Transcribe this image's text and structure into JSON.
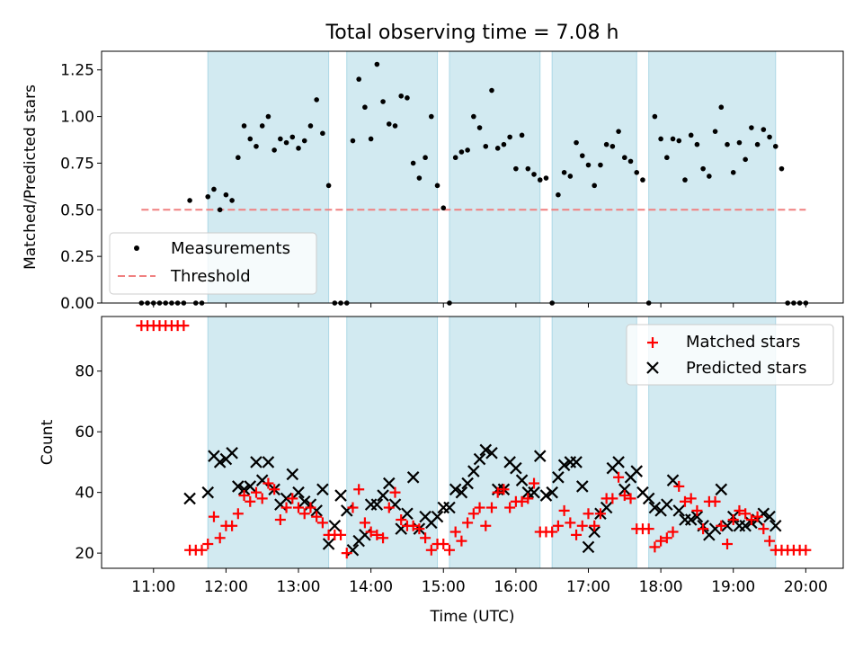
{
  "chart_data": [
    {
      "type": "scatter",
      "title": "Total observing time = 7.08 h",
      "ylabel": "Matched/Predicted stars",
      "ylim": [
        0,
        1.35
      ],
      "yticks": [
        "0.00",
        "0.25",
        "0.50",
        "0.75",
        "1.00",
        "1.25"
      ],
      "threshold": 0.5,
      "legend": {
        "placement": "lower-left",
        "entries": [
          "Measurements",
          "Threshold"
        ]
      },
      "series": [
        {
          "name": "Measurements",
          "x": [
            "10:50",
            "10:55",
            "11:00",
            "11:05",
            "11:10",
            "11:15",
            "11:20",
            "11:25",
            "11:30",
            "11:35",
            "11:40",
            "11:45",
            "11:50",
            "11:55",
            "12:00",
            "12:05",
            "12:10",
            "12:15",
            "12:20",
            "12:25",
            "12:30",
            "12:35",
            "12:40",
            "12:45",
            "12:50",
            "12:55",
            "13:00",
            "13:05",
            "13:10",
            "13:15",
            "13:20",
            "13:25",
            "13:30",
            "13:35",
            "13:40",
            "13:45",
            "13:50",
            "13:55",
            "14:00",
            "14:05",
            "14:10",
            "14:15",
            "14:20",
            "14:25",
            "14:30",
            "14:35",
            "14:40",
            "14:45",
            "14:50",
            "14:55",
            "15:00",
            "15:05",
            "15:10",
            "15:15",
            "15:20",
            "15:25",
            "15:30",
            "15:35",
            "15:40",
            "15:45",
            "15:50",
            "15:55",
            "16:00",
            "16:05",
            "16:10",
            "16:15",
            "16:20",
            "16:25",
            "16:30",
            "16:35",
            "16:40",
            "16:45",
            "16:50",
            "16:55",
            "17:00",
            "17:05",
            "17:10",
            "17:15",
            "17:20",
            "17:25",
            "17:30",
            "17:35",
            "17:40",
            "17:45",
            "17:50",
            "17:55",
            "18:00",
            "18:05",
            "18:10",
            "18:15",
            "18:20",
            "18:25",
            "18:30",
            "18:35",
            "18:40",
            "18:45",
            "18:50",
            "18:55",
            "19:00",
            "19:05",
            "19:10",
            "19:15",
            "19:20",
            "19:25",
            "19:30",
            "19:35",
            "19:40",
            "19:45",
            "19:50",
            "19:55",
            "20:00"
          ],
          "values": [
            0,
            0,
            0,
            0,
            0,
            0,
            0,
            0,
            0.55,
            0,
            0,
            0.57,
            0.61,
            0.5,
            0.58,
            0.55,
            0.78,
            0.95,
            0.88,
            0.84,
            0.95,
            1.0,
            0.82,
            0.88,
            0.86,
            0.89,
            0.83,
            0.87,
            0.95,
            1.09,
            0.91,
            0.63,
            0,
            0,
            0,
            0.87,
            1.2,
            1.05,
            0.88,
            1.28,
            1.08,
            0.96,
            0.95,
            1.11,
            1.1,
            0.75,
            0.67,
            0.78,
            1.0,
            0.63,
            0.51,
            0,
            0.78,
            0.81,
            0.82,
            1.0,
            0.94,
            0.84,
            1.14,
            0.83,
            0.85,
            0.89,
            0.72,
            0.9,
            0.72,
            0.69,
            0.66,
            0.67,
            0,
            0.58,
            0.7,
            0.68,
            0.86,
            0.79,
            0.74,
            0.63,
            0.74,
            0.85,
            0.84,
            0.92,
            0.78,
            0.76,
            0.7,
            0.66,
            0,
            1.0,
            0.88,
            0.78,
            0.88,
            0.87,
            0.66,
            0.9,
            0.85,
            0.72,
            0.68,
            0.92,
            1.05,
            0.85,
            0.7,
            0.86,
            0.77,
            0.94,
            0.85,
            0.93,
            0.89,
            0.84,
            0.72,
            0,
            0,
            0,
            0
          ]
        }
      ]
    },
    {
      "type": "scatter",
      "xlabel": "Time (UTC)",
      "ylabel": "Count",
      "ylim": [
        15,
        98
      ],
      "yticks": [
        "20",
        "40",
        "60",
        "80"
      ],
      "xticks": [
        "11:00",
        "12:00",
        "13:00",
        "14:00",
        "15:00",
        "16:00",
        "17:00",
        "18:00",
        "19:00",
        "20:00"
      ],
      "legend": {
        "placement": "top-right",
        "entries": [
          "Matched stars",
          "Predicted stars"
        ]
      },
      "series": [
        {
          "name": "Matched stars",
          "color": "#ff0000",
          "x": [
            "10:50",
            "10:55",
            "11:00",
            "11:05",
            "11:10",
            "11:15",
            "11:20",
            "11:25",
            "11:30",
            "11:35",
            "11:40",
            "11:45",
            "11:50",
            "11:55",
            "12:00",
            "12:05",
            "12:10",
            "12:15",
            "12:20",
            "12:25",
            "12:30",
            "12:35",
            "12:40",
            "12:45",
            "12:50",
            "12:55",
            "13:00",
            "13:05",
            "13:10",
            "13:15",
            "13:20",
            "13:25",
            "13:30",
            "13:35",
            "13:40",
            "13:45",
            "13:50",
            "13:55",
            "14:00",
            "14:05",
            "14:10",
            "14:15",
            "14:20",
            "14:25",
            "14:30",
            "14:35",
            "14:40",
            "14:45",
            "14:50",
            "14:55",
            "15:00",
            "15:05",
            "15:10",
            "15:15",
            "15:20",
            "15:25",
            "15:30",
            "15:35",
            "15:40",
            "15:45",
            "15:50",
            "15:55",
            "16:00",
            "16:05",
            "16:10",
            "16:15",
            "16:20",
            "16:25",
            "16:30",
            "16:35",
            "16:40",
            "16:45",
            "16:50",
            "16:55",
            "17:00",
            "17:05",
            "17:10",
            "17:15",
            "17:20",
            "17:25",
            "17:30",
            "17:35",
            "17:40",
            "17:45",
            "17:50",
            "17:55",
            "18:00",
            "18:05",
            "18:10",
            "18:15",
            "18:20",
            "18:25",
            "18:30",
            "18:35",
            "18:40",
            "18:45",
            "18:50",
            "18:55",
            "19:00",
            "19:05",
            "19:10",
            "19:15",
            "19:20",
            "19:25",
            "19:30",
            "19:35",
            "19:40",
            "19:45",
            "19:50",
            "19:55",
            "20:00"
          ],
          "values": [
            95,
            95,
            95,
            95,
            95,
            95,
            95,
            95,
            21,
            21,
            21,
            23,
            32,
            25,
            29,
            29,
            33,
            39,
            37,
            40,
            38,
            43,
            41,
            31,
            35,
            38,
            35,
            33,
            35,
            32,
            30,
            26,
            26,
            26,
            20,
            35,
            41,
            30,
            27,
            26,
            25,
            35,
            40,
            31,
            29,
            29,
            28,
            25,
            21,
            23,
            23,
            21,
            27,
            24,
            30,
            33,
            35,
            29,
            35,
            40,
            41,
            35,
            37,
            37,
            38,
            43,
            27,
            27,
            27,
            29,
            34,
            30,
            26,
            29,
            33,
            29,
            33,
            38,
            38,
            45,
            39,
            38,
            28,
            28,
            28,
            22,
            24,
            25,
            27,
            42,
            37,
            38,
            34,
            28,
            37,
            37,
            29,
            23,
            31,
            34,
            33,
            31,
            32,
            28,
            24,
            21,
            21,
            21,
            21,
            21,
            21
          ]
        },
        {
          "name": "Predicted stars",
          "color": "#000000",
          "x": [
            "11:30",
            "11:45",
            "11:50",
            "11:55",
            "12:00",
            "12:05",
            "12:10",
            "12:15",
            "12:20",
            "12:25",
            "12:30",
            "12:35",
            "12:40",
            "12:45",
            "12:50",
            "12:55",
            "13:00",
            "13:05",
            "13:10",
            "13:15",
            "13:20",
            "13:25",
            "13:30",
            "13:35",
            "13:40",
            "13:45",
            "13:50",
            "13:55",
            "14:00",
            "14:05",
            "14:10",
            "14:15",
            "14:20",
            "14:25",
            "14:30",
            "14:35",
            "14:40",
            "14:45",
            "14:50",
            "14:55",
            "15:00",
            "15:05",
            "15:10",
            "15:15",
            "15:20",
            "15:25",
            "15:30",
            "15:35",
            "15:40",
            "15:45",
            "15:50",
            "15:55",
            "16:00",
            "16:05",
            "16:10",
            "16:15",
            "16:20",
            "16:25",
            "16:30",
            "16:35",
            "16:40",
            "16:45",
            "16:50",
            "16:55",
            "17:00",
            "17:05",
            "17:10",
            "17:15",
            "17:20",
            "17:25",
            "17:30",
            "17:35",
            "17:40",
            "17:45",
            "17:50",
            "17:55",
            "18:00",
            "18:05",
            "18:10",
            "18:15",
            "18:20",
            "18:25",
            "18:30",
            "18:35",
            "18:40",
            "18:45",
            "18:50",
            "18:55",
            "19:00",
            "19:05",
            "19:10",
            "19:15",
            "19:20",
            "19:25",
            "19:30",
            "19:35"
          ],
          "values": [
            38,
            40,
            52,
            50,
            51,
            53,
            42,
            41,
            42,
            50,
            44,
            50,
            41,
            36,
            38,
            46,
            40,
            37,
            36,
            34,
            41,
            23,
            29,
            39,
            34,
            21,
            24,
            26,
            36,
            36,
            39,
            43,
            36,
            28,
            33,
            45,
            28,
            32,
            30,
            32,
            35,
            35,
            41,
            40,
            43,
            47,
            51,
            54,
            53,
            41,
            41,
            50,
            48,
            44,
            40,
            40,
            52,
            39,
            40,
            45,
            49,
            50,
            50,
            42,
            22,
            27,
            33,
            35,
            48,
            50,
            41,
            45,
            47,
            40,
            38,
            35,
            34,
            36,
            44,
            34,
            31,
            31,
            32,
            29,
            26,
            28,
            41,
            29,
            32,
            29,
            29,
            30,
            31,
            33,
            32,
            29
          ]
        }
      ]
    }
  ],
  "bands": [
    [
      "11:45",
      "13:25"
    ],
    [
      "13:40",
      "14:55"
    ],
    [
      "15:05",
      "16:20"
    ],
    [
      "16:30",
      "17:40"
    ],
    [
      "17:50",
      "19:35"
    ]
  ],
  "colors": {
    "band": "#add8e6",
    "threshold": "#f08080"
  }
}
